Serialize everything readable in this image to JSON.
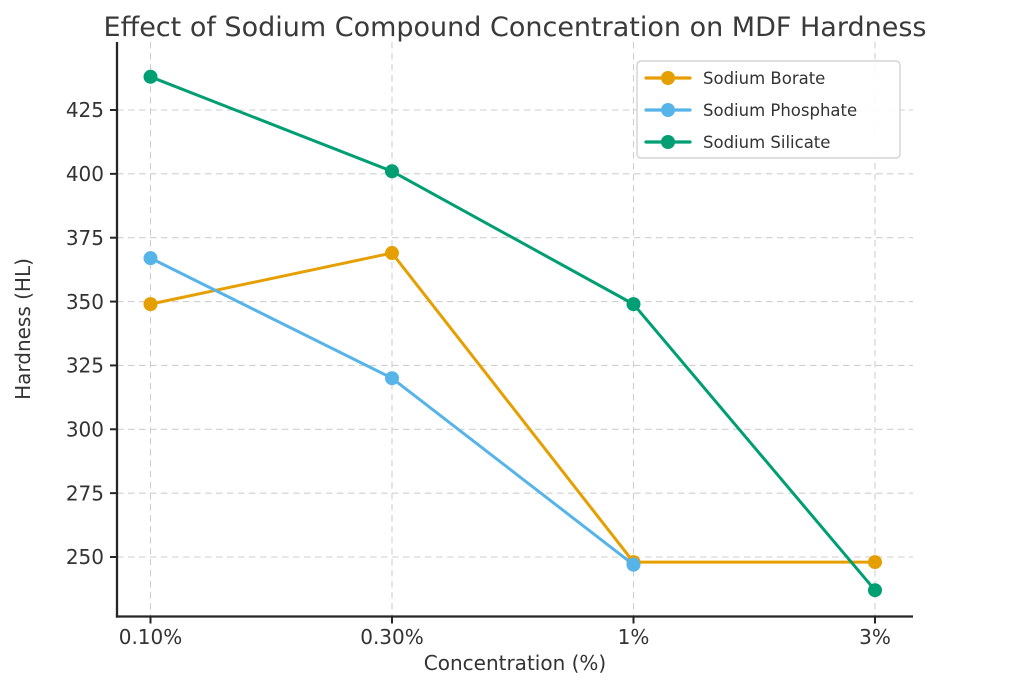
{
  "title": "Effect of Sodium Compound Concentration on MDF Hardness",
  "chart_data": {
    "type": "line",
    "title": "Effect of Sodium Compound Concentration on MDF Hardness",
    "xlabel": "Concentration (%)",
    "ylabel": "Hardness (HL)",
    "categories": [
      "0.10%",
      "0.30%",
      "1%",
      "3%"
    ],
    "series": [
      {
        "name": "Sodium Borate",
        "color": "#E69F00",
        "values": [
          349,
          369,
          248,
          248
        ]
      },
      {
        "name": "Sodium Phosphate",
        "color": "#56B4E9",
        "values": [
          367,
          320,
          247,
          null
        ]
      },
      {
        "name": "Sodium Silicate",
        "color": "#009E73",
        "values": [
          438,
          401,
          349,
          237
        ]
      }
    ],
    "y_ticks": [
      250,
      275,
      300,
      325,
      350,
      375,
      400,
      425
    ],
    "ylim": [
      227,
      452
    ],
    "grid": true,
    "grid_style": "dashed",
    "legend_position": "upper right",
    "marker": "circle",
    "line_width": 3,
    "marker_radius": 7
  },
  "colors": {
    "background": "#ffffff",
    "text": "#333333",
    "title_text": "#3a3a3a",
    "spine": "#262626",
    "grid": "#cfcfcf",
    "legend_border": "#cccccc",
    "legend_background": "#ffffff"
  }
}
